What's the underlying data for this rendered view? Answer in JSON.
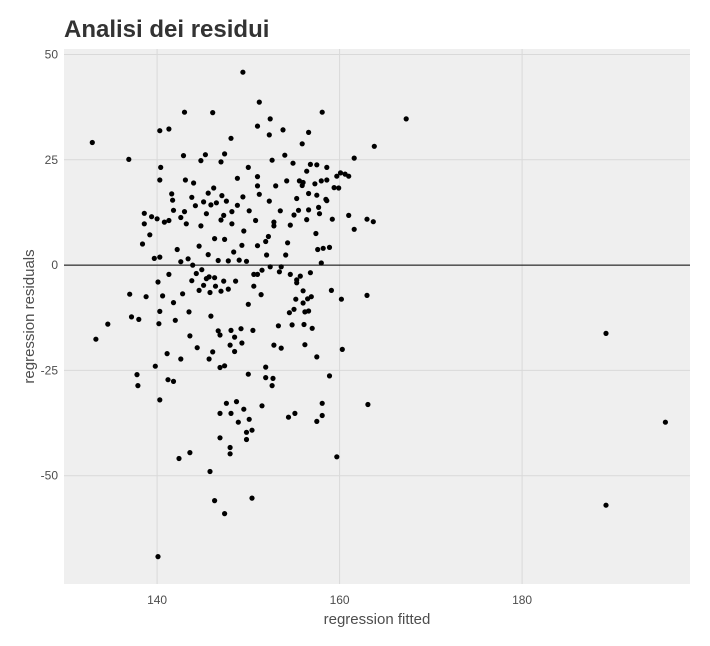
{
  "chart_data": {
    "type": "scatter",
    "title": "Analisi dei residui",
    "xlabel": "regression fitted",
    "ylabel": "regression residuals",
    "xlim": [
      129.8,
      198.4
    ],
    "ylim": [
      -75.7,
      51.3
    ],
    "xticks": [
      140,
      160,
      180
    ],
    "xtick_labels": [
      "140",
      "160",
      "180"
    ],
    "yticks": [
      50,
      25,
      0,
      -25,
      -50
    ],
    "ytick_labels": [
      "50",
      "25",
      "0",
      "-25",
      "-50"
    ],
    "hline": 0,
    "grid": true,
    "colors": {
      "panel": "#efefef",
      "grid": "#d9d9d9",
      "point": "#000000",
      "hline": "#000000"
    },
    "points": [
      [
        132.9,
        29.1
      ],
      [
        133.3,
        -17.6
      ],
      [
        134.6,
        -14
      ],
      [
        136.9,
        25.1
      ],
      [
        137,
        -6.9
      ],
      [
        137.2,
        -12.3
      ],
      [
        137.8,
        -26
      ],
      [
        137.9,
        -28.6
      ],
      [
        138,
        -12.9
      ],
      [
        138.4,
        5
      ],
      [
        138.6,
        9.8
      ],
      [
        138.6,
        12.3
      ],
      [
        138.8,
        -7.5
      ],
      [
        139.2,
        7.2
      ],
      [
        139.4,
        11.5
      ],
      [
        139.7,
        1.6
      ],
      [
        139.8,
        -24
      ],
      [
        140,
        11
      ],
      [
        140.1,
        -4
      ],
      [
        140.2,
        -13.9
      ],
      [
        140.3,
        -11
      ],
      [
        140.3,
        1.9
      ],
      [
        140.4,
        23.2
      ],
      [
        140.3,
        20.2
      ],
      [
        140.3,
        31.9
      ],
      [
        140.3,
        -32
      ],
      [
        140.1,
        -69.2
      ],
      [
        140.6,
        -7.3
      ],
      [
        140.8,
        10.2
      ],
      [
        141.1,
        -21
      ],
      [
        141.2,
        -27.2
      ],
      [
        141.3,
        -2.2
      ],
      [
        141.3,
        10.6
      ],
      [
        141.3,
        32.3
      ],
      [
        141.6,
        16.9
      ],
      [
        141.7,
        15.4
      ],
      [
        141.8,
        -27.6
      ],
      [
        141.8,
        -8.9
      ],
      [
        141.8,
        13
      ],
      [
        142,
        -13.1
      ],
      [
        142.2,
        3.7
      ],
      [
        142.4,
        -45.9
      ],
      [
        142.6,
        11.3
      ],
      [
        142.6,
        0.8
      ],
      [
        142.6,
        -22.3
      ],
      [
        142.8,
        -6.8
      ],
      [
        142.9,
        26
      ],
      [
        143,
        36.3
      ],
      [
        143.1,
        20.2
      ],
      [
        143,
        12.7
      ],
      [
        143.2,
        9.8
      ],
      [
        143.4,
        1.5
      ],
      [
        143.5,
        -11.1
      ],
      [
        143.6,
        -44.5
      ],
      [
        143.6,
        -16.8
      ],
      [
        143.8,
        -3.7
      ],
      [
        143.8,
        16.1
      ],
      [
        143.9,
        0
      ],
      [
        144,
        19.5
      ],
      [
        144.2,
        14.1
      ],
      [
        144.3,
        -2
      ],
      [
        144.4,
        -19.6
      ],
      [
        144.6,
        4.5
      ],
      [
        144.6,
        -6
      ],
      [
        144.8,
        24.8
      ],
      [
        144.8,
        9.3
      ],
      [
        144.9,
        -1.1
      ],
      [
        145.1,
        15
      ],
      [
        145.1,
        -4.8
      ],
      [
        145.3,
        26.2
      ],
      [
        145.4,
        12.2
      ],
      [
        145.4,
        -3.2
      ],
      [
        145.6,
        17.1
      ],
      [
        145.6,
        2.5
      ],
      [
        145.7,
        -22.3
      ],
      [
        145.7,
        -2.8
      ],
      [
        145.8,
        -6.5
      ],
      [
        145.8,
        -49
      ],
      [
        145.9,
        -12.1
      ],
      [
        145.9,
        14.3
      ],
      [
        146.1,
        -20.6
      ],
      [
        146.1,
        36.2
      ],
      [
        146.2,
        18.3
      ],
      [
        146.3,
        6.3
      ],
      [
        146.3,
        -3
      ],
      [
        146.3,
        -55.9
      ],
      [
        146.4,
        -5
      ],
      [
        146.5,
        14.8
      ],
      [
        146.7,
        -15.6
      ],
      [
        146.7,
        1.1
      ],
      [
        146.9,
        -41
      ],
      [
        146.9,
        -24.3
      ],
      [
        146.9,
        -35.2
      ],
      [
        146.9,
        -16.6
      ],
      [
        147,
        10.7
      ],
      [
        147,
        24.5
      ],
      [
        147,
        -6.2
      ],
      [
        147.1,
        16.5
      ],
      [
        147.3,
        11.8
      ],
      [
        147.3,
        -3.8
      ],
      [
        147.4,
        6.1
      ],
      [
        147.4,
        -23.9
      ],
      [
        147.4,
        26.4
      ],
      [
        147.4,
        -59
      ],
      [
        147.6,
        -32.8
      ],
      [
        147.6,
        15.2
      ],
      [
        147.8,
        -5.7
      ],
      [
        147.8,
        1
      ],
      [
        148,
        -19
      ],
      [
        148,
        -43.3
      ],
      [
        148,
        -44.8
      ],
      [
        148.1,
        -15.5
      ],
      [
        148.1,
        -35.2
      ],
      [
        148.1,
        30.1
      ],
      [
        148.2,
        12.7
      ],
      [
        148.2,
        9.8
      ],
      [
        148.4,
        3.1
      ],
      [
        148.5,
        -17.1
      ],
      [
        148.5,
        -20.5
      ],
      [
        148.6,
        -3.8
      ],
      [
        148.7,
        -32.4
      ],
      [
        148.8,
        20.6
      ],
      [
        148.8,
        14.2
      ],
      [
        148.9,
        -37.3
      ],
      [
        149,
        1.2
      ],
      [
        149.2,
        -15.1
      ],
      [
        149.3,
        4.7
      ],
      [
        149.3,
        -18.5
      ],
      [
        149.4,
        16.2
      ],
      [
        149.4,
        45.8
      ],
      [
        149.5,
        -34.2
      ],
      [
        149.5,
        8.1
      ],
      [
        149.8,
        -41.4
      ],
      [
        149.8,
        0.9
      ],
      [
        149.8,
        -39.7
      ],
      [
        150,
        -9.3
      ],
      [
        150,
        23.2
      ],
      [
        150.1,
        12.9
      ],
      [
        150,
        -25.9
      ],
      [
        150.1,
        -36.6
      ],
      [
        150.4,
        -55.3
      ],
      [
        150.4,
        -39.2
      ],
      [
        150.5,
        -15.5
      ],
      [
        150.6,
        -5
      ],
      [
        150.6,
        -2.2
      ],
      [
        150.8,
        10.6
      ],
      [
        151,
        21
      ],
      [
        151,
        18.8
      ],
      [
        151,
        4.6
      ],
      [
        151,
        33
      ],
      [
        151,
        -2.2
      ],
      [
        151.2,
        16.8
      ],
      [
        151.2,
        38.7
      ],
      [
        151.4,
        -7
      ],
      [
        151.5,
        -33.4
      ],
      [
        151.5,
        -1.2
      ],
      [
        151.9,
        5.6
      ],
      [
        151.9,
        -26.7
      ],
      [
        151.9,
        -24.2
      ],
      [
        152,
        2.4
      ],
      [
        152.2,
        6.8
      ],
      [
        152.3,
        30.9
      ],
      [
        152.3,
        15.2
      ],
      [
        152.4,
        -0.4
      ],
      [
        152.4,
        34.7
      ],
      [
        152.6,
        24.9
      ],
      [
        152.6,
        -28.6
      ],
      [
        152.7,
        -26.9
      ],
      [
        152.8,
        -19
      ],
      [
        152.8,
        10.2
      ],
      [
        152.8,
        9.3
      ],
      [
        153,
        18.8
      ],
      [
        153.3,
        -14.4
      ],
      [
        153.4,
        -1.6
      ],
      [
        153.5,
        12.9
      ],
      [
        153.6,
        -19.7
      ],
      [
        153.6,
        -0.4
      ],
      [
        153.8,
        32.1
      ],
      [
        154,
        26.1
      ],
      [
        154.1,
        2.4
      ],
      [
        154.2,
        20
      ],
      [
        154.3,
        5.3
      ],
      [
        154.4,
        -36.1
      ],
      [
        154.5,
        -11.3
      ],
      [
        154.6,
        -2.2
      ],
      [
        154.6,
        9.5
      ],
      [
        154.8,
        -14.2
      ],
      [
        154.9,
        24.2
      ],
      [
        155,
        11.9
      ],
      [
        155,
        -10.5
      ],
      [
        155.1,
        -35.2
      ],
      [
        155.2,
        -8.1
      ],
      [
        155.3,
        -3.5
      ],
      [
        155.3,
        15.8
      ],
      [
        155.3,
        -4.2
      ],
      [
        155.5,
        13
      ],
      [
        155.6,
        20
      ],
      [
        155.7,
        -2.6
      ],
      [
        155.9,
        28.8
      ],
      [
        155.9,
        18.9
      ],
      [
        156,
        19.6
      ],
      [
        156,
        -9
      ],
      [
        156,
        -6.1
      ],
      [
        156.1,
        -14.1
      ],
      [
        156.2,
        -11.1
      ],
      [
        156.2,
        -18.9
      ],
      [
        156.4,
        22.3
      ],
      [
        156.4,
        10.8
      ],
      [
        156.5,
        -8
      ],
      [
        156.6,
        17
      ],
      [
        156.6,
        13.1
      ],
      [
        156.6,
        -10.9
      ],
      [
        156.6,
        31.5
      ],
      [
        156.8,
        23.9
      ],
      [
        156.8,
        -1.8
      ],
      [
        156.9,
        -7.5
      ],
      [
        157,
        -15
      ],
      [
        157.3,
        19.3
      ],
      [
        157.5,
        -37.1
      ],
      [
        157.5,
        16.6
      ],
      [
        157.4,
        7.5
      ],
      [
        157.5,
        23.8
      ],
      [
        157.5,
        -21.8
      ],
      [
        157.6,
        3.7
      ],
      [
        157.7,
        13.7
      ],
      [
        157.8,
        12.2
      ],
      [
        158,
        20
      ],
      [
        158,
        0.5
      ],
      [
        158.1,
        36.3
      ],
      [
        158.1,
        -32.8
      ],
      [
        158.1,
        -35.7
      ],
      [
        158.2,
        4
      ],
      [
        158.5,
        15.6
      ],
      [
        158.6,
        20.2
      ],
      [
        158.6,
        15.3
      ],
      [
        158.6,
        23.2
      ],
      [
        158.9,
        -26.3
      ],
      [
        158.9,
        4.2
      ],
      [
        159.1,
        -6
      ],
      [
        159.2,
        10.9
      ],
      [
        159.4,
        18.4
      ],
      [
        159.7,
        -45.5
      ],
      [
        159.7,
        21.1
      ],
      [
        159.9,
        18.3
      ],
      [
        160.1,
        21.9
      ],
      [
        160.2,
        -8.1
      ],
      [
        160.3,
        -20
      ],
      [
        160.6,
        21.6
      ],
      [
        161,
        11.8
      ],
      [
        161,
        21.1
      ],
      [
        161.6,
        25.4
      ],
      [
        161.6,
        8.5
      ],
      [
        163,
        10.9
      ],
      [
        163,
        -7.2
      ],
      [
        163.1,
        -33.1
      ],
      [
        163.7,
        10.3
      ],
      [
        163.8,
        28.2
      ],
      [
        167.3,
        34.7
      ],
      [
        189.2,
        -16.2
      ],
      [
        189.2,
        -57
      ],
      [
        195.7,
        -37.3
      ]
    ]
  }
}
